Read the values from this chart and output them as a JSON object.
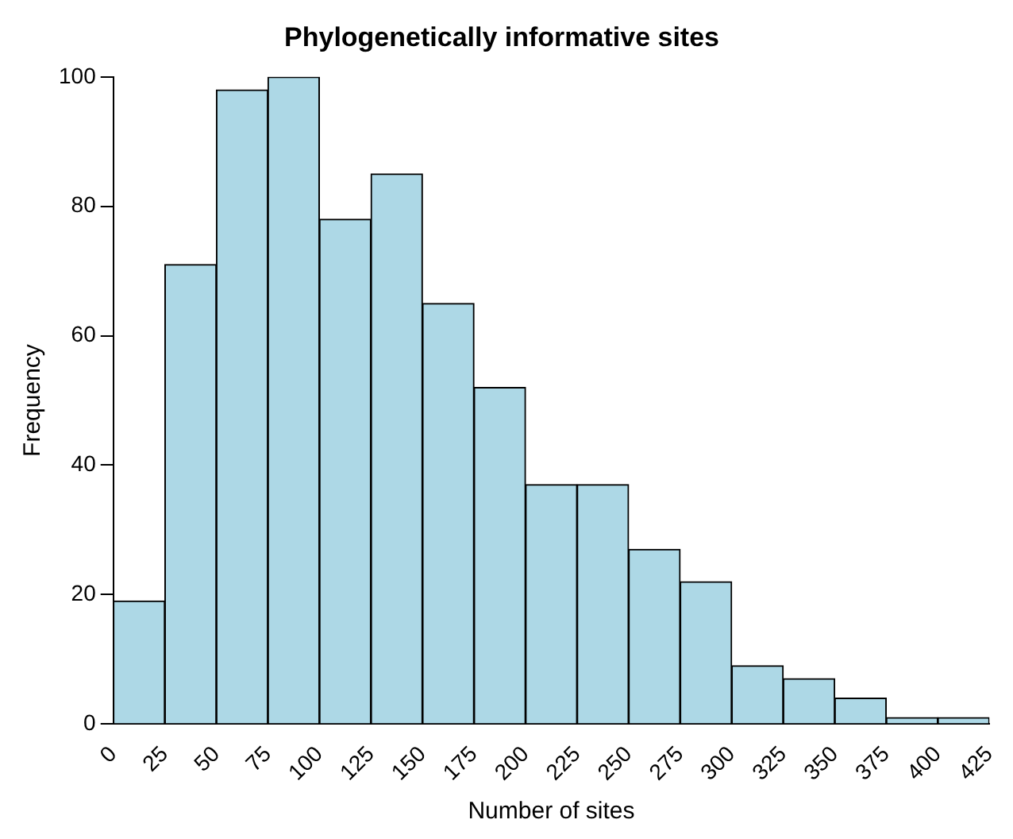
{
  "chart_data": {
    "type": "histogram",
    "title": "Phylogenetically informative sites",
    "xlabel": "Number of sites",
    "ylabel": "Frequency",
    "bins": [
      0,
      25,
      50,
      75,
      100,
      125,
      150,
      175,
      200,
      225,
      250,
      275,
      300,
      325,
      350,
      375,
      400,
      425
    ],
    "values": [
      19,
      71,
      98,
      100,
      78,
      85,
      65,
      52,
      37,
      37,
      27,
      22,
      9,
      7,
      4,
      1,
      1
    ],
    "color": "#add8e6",
    "xlim": [
      0,
      425
    ],
    "xticks": [
      0,
      25,
      50,
      75,
      100,
      125,
      150,
      175,
      200,
      225,
      250,
      275,
      300,
      325,
      350,
      375,
      400,
      425
    ],
    "ylim": [
      0,
      100
    ],
    "yticks": [
      0,
      20,
      40,
      60,
      80,
      100
    ],
    "grid": false,
    "legend": false
  }
}
